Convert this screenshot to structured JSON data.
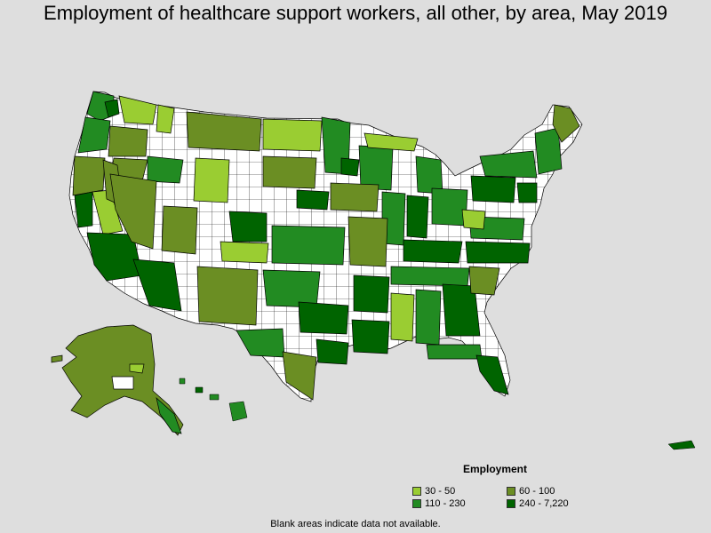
{
  "title": "Employment of healthcare support workers, all other, by area, May 2019",
  "legend": {
    "title": "Employment",
    "items": [
      {
        "label": "30 - 50",
        "color": "#9acd32"
      },
      {
        "label": "60 - 100",
        "color": "#6b8e23"
      },
      {
        "label": "110 - 230",
        "color": "#228b22"
      },
      {
        "label": "240 - 7,220",
        "color": "#006400"
      }
    ]
  },
  "note": "Blank areas indicate data not available.",
  "colors": {
    "background": "#dedede",
    "no_data": "#ffffff",
    "border": "#000000"
  }
}
